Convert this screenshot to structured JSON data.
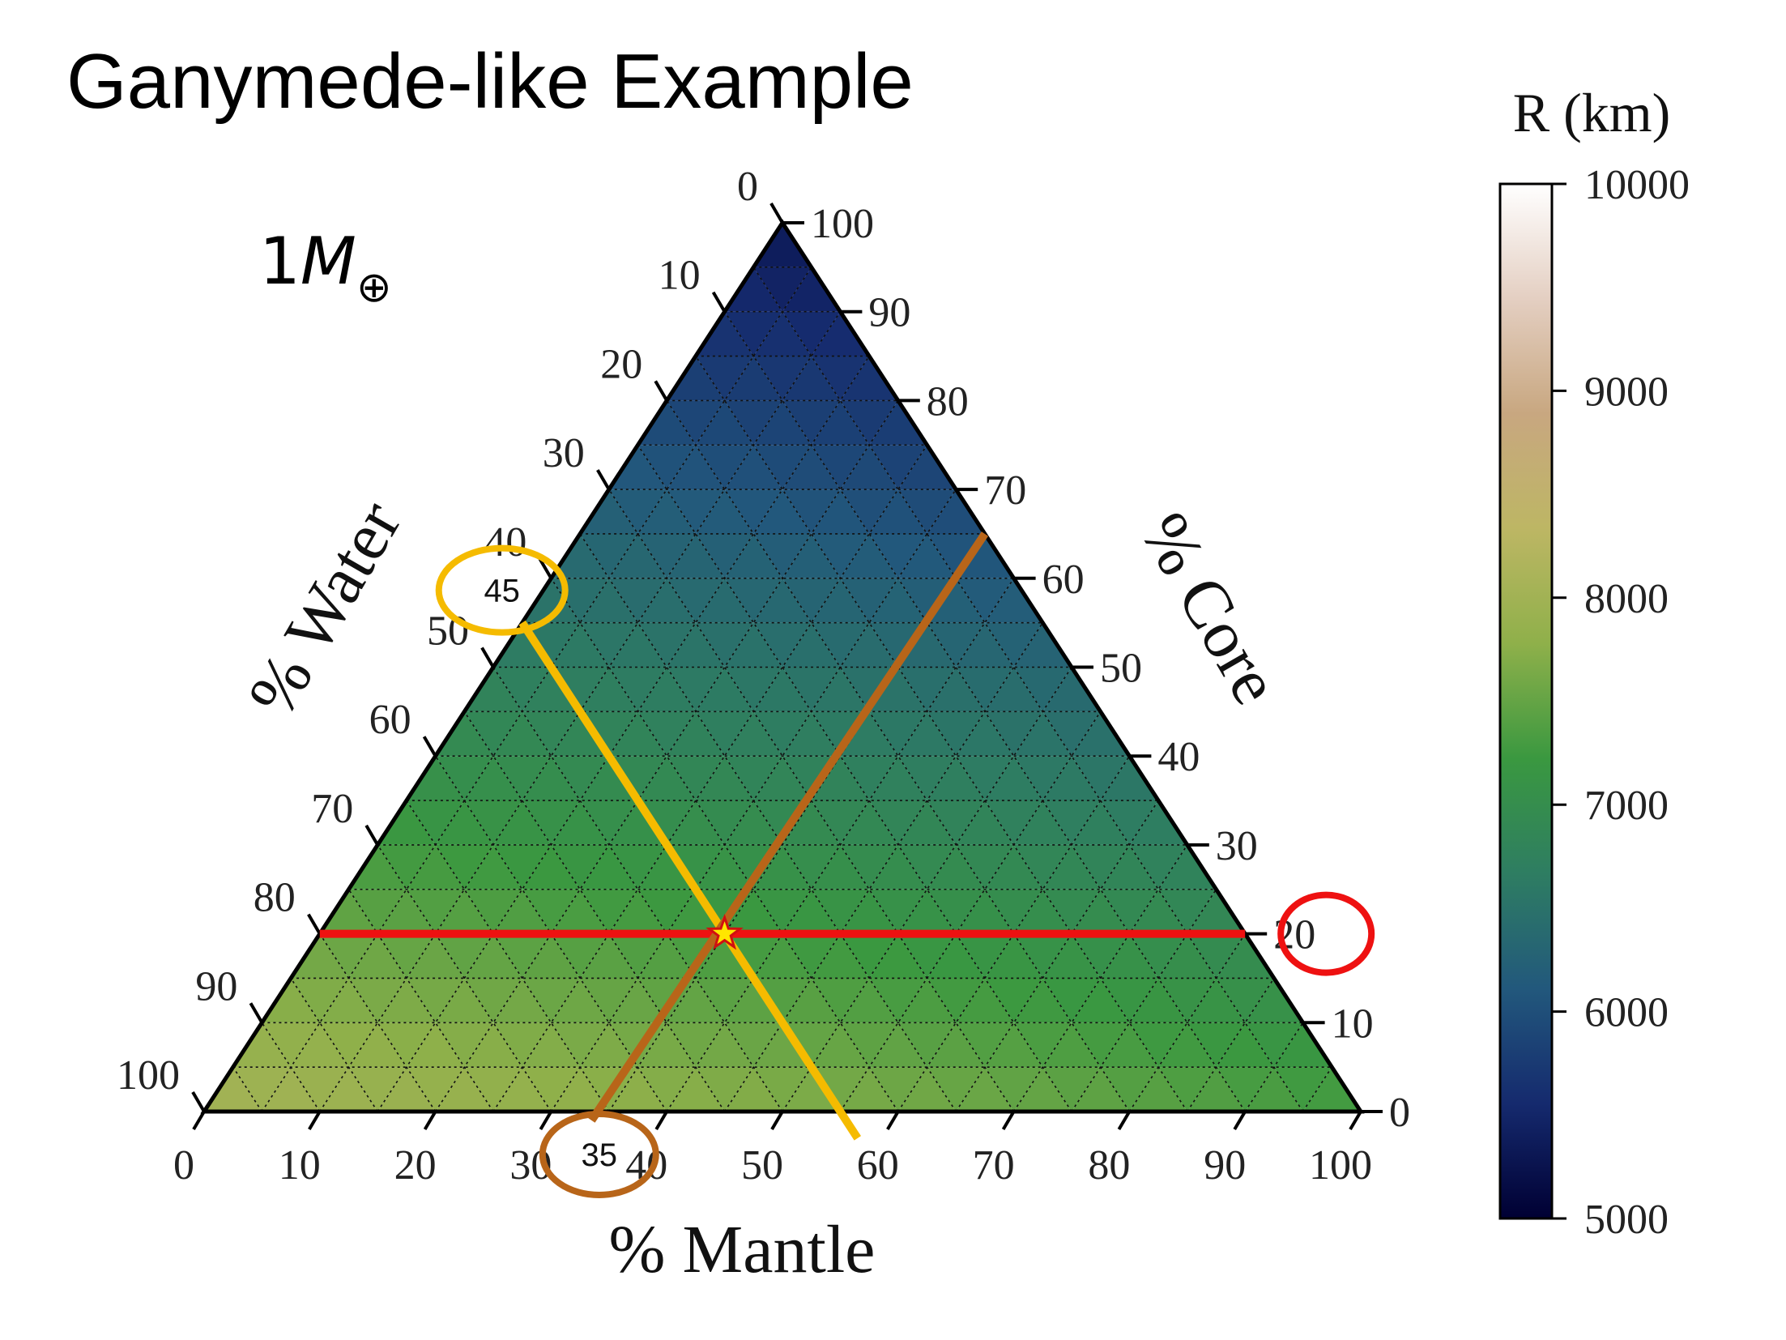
{
  "slide": {
    "title": "Ganymede-like Example"
  },
  "chart_data": {
    "type": "ternary",
    "mass_label": "1M⊕",
    "axes": {
      "water": {
        "label": "% Water",
        "ticks": [
          0,
          10,
          20,
          30,
          40,
          50,
          60,
          70,
          80,
          90,
          100
        ]
      },
      "core": {
        "label": "% Core",
        "ticks": [
          0,
          10,
          20,
          30,
          40,
          50,
          60,
          70,
          80,
          90,
          100
        ]
      },
      "mantle": {
        "label": "% Mantle",
        "ticks": [
          0,
          10,
          20,
          30,
          40,
          50,
          60,
          70,
          80,
          90,
          100
        ]
      }
    },
    "grid": true,
    "grid_step": 5,
    "colorbar": {
      "label": "R (km)",
      "min": 5000,
      "max": 10000,
      "ticks": [
        5000,
        6000,
        7000,
        8000,
        9000,
        10000
      ],
      "colors": [
        "#000033",
        "#152a6e",
        "#22587c",
        "#2e7d62",
        "#3a9840",
        "#8fb04a",
        "#bdb664",
        "#c8a780",
        "#e4cfc2",
        "#ffffff"
      ]
    },
    "highlight_point": {
      "water": 45,
      "core": 20,
      "mantle": 35
    },
    "callouts": [
      {
        "axis": "water",
        "value": "45",
        "color": "#f5bb00"
      },
      {
        "axis": "core",
        "value": "20",
        "color": "#ee1111"
      },
      {
        "axis": "mantle",
        "value": "35",
        "color": "#b86519"
      }
    ],
    "constant_lines": [
      {
        "axis": "core",
        "value": 20,
        "color": "#ee1111"
      },
      {
        "axis": "water",
        "value": 45,
        "color": "#f5bb00"
      },
      {
        "axis": "mantle",
        "value": 35,
        "color": "#b86519"
      }
    ]
  }
}
